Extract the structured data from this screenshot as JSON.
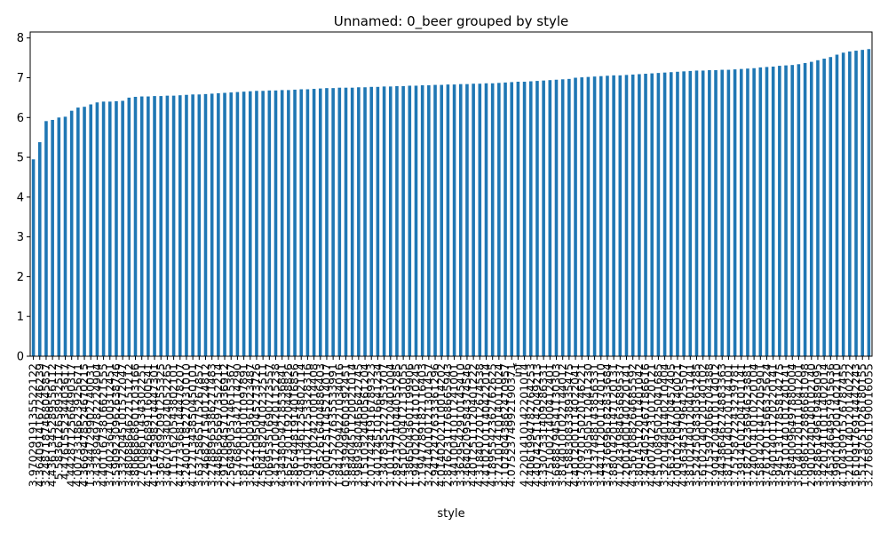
{
  "chart_data": {
    "type": "bar",
    "title": "Unnamed: 0_beer grouped by style",
    "xlabel": "style",
    "ylabel": "",
    "ylim": [
      0,
      8.15
    ],
    "yticks": [
      0,
      1,
      2,
      3,
      4,
      5,
      6,
      7,
      8
    ],
    "legend": "none",
    "grid": false,
    "bar_color": "#1f77b4",
    "categories": [
      "3.9702919135522122",
      "4.3640914167246239",
      "3.2487187468045857",
      "4.4361345289556112",
      "5.583612658932517",
      "4.476155234403617",
      "4.4428712566490317",
      "4.0073318623925671",
      "4.3669478524670215",
      "1.3344729902740031",
      "3.4328949782224904",
      "4.4011673816621555",
      "3.7402364100312451",
      "3.5909230962638746",
      "3.3322045101572047",
      "3.4808864622151212",
      "3.8066868601203166",
      "2.7008611434302251",
      "4.5538268911600541",
      "4.1162398214447301",
      "3.3677892091255325",
      "3.4670334024052265",
      "2.1151620543802101",
      "4.4773368144478207",
      "3.2400118227031010",
      "4.1271343850450101",
      "3.6375865175267857",
      "3.2468271540124812",
      "3.2788965386271483",
      "3.4486365697352214",
      "2.9120645710036912",
      "2.5649903574615367",
      "1.5768616342114290",
      "3.8712010101097891",
      "3.6122500361023487",
      "4.2631095045273726",
      "4.5041820410232511",
      "4.0695351690723557",
      "3.4512100420115238",
      "4.3438054218536841",
      "3.6573011920448826",
      "3.8654481914016856",
      "2.9113461254802114",
      "3.0910421253328316",
      "3.3417024210014408",
      "3.6952616404886403",
      "3.7001251145214017",
      "2.9575277635533991",
      "1.8412094221034016",
      "0.6339496600392451",
      "3.8840451120021014",
      "3.9893840465642745",
      "4.1510324400561204",
      "2.0174241916789323",
      "3.4012451016641234",
      "2.3478352227953707",
      "3.1011451120401004",
      "2.8923774044055285",
      "2.4510200412131055",
      "1.3865043601199906",
      "1.9470202141010245",
      "2.1947789182116403",
      "3.2414010121301457",
      "2.9472477633361296",
      "4.0140202110014202",
      "2.8762311768665943",
      "3.4410041011241001",
      "3.3629542910145410",
      "3.4640209584374546",
      "4.4012511120401222",
      "4.3184072012674538",
      "4.4102101140422014",
      "4.1895542362762625",
      "3.7210141014011024",
      "4.1078043862470957",
      "4.0752374992190371",
      "inf",
      "4.2201410142201014",
      "4.4061994782764253",
      "4.4074251142049213",
      "4.3307331409286331",
      "3.7510021400412401",
      "3.6888794541130303",
      "3.8140101022144012",
      "4.1588308338935475",
      "4.4012001114022041",
      "3.7097015020146221",
      "3.3013050512041230",
      "3.1237488143856331",
      "3.4471120011470110",
      "3.7376696182833684",
      "3.8801420147120131",
      "4.1243198463689537",
      "4.2001400140220141",
      "4.3567088264685592",
      "3.8014512011401042",
      "3.4254052467186616",
      "4.4007412310120121",
      "4.5110895025041685",
      "3.3201440140210404",
      "4.5632768770457405",
      "4.0010210400140021",
      "4.4363453796425507",
      "3.8102140120401141",
      "3.5247503830363285",
      "3.6102140120140102",
      "3.7153972066704388",
      "3.9041204110114012",
      "3.4438646274883363",
      "3.8710140120114101",
      "3.7575872243239781",
      "3.3914101204101141",
      "3.1827623694623881",
      "3.2400141010220104",
      "3.5814201412205901",
      "3.7612011566375624",
      "3.6401401120220141",
      "3.9451311785814275",
      "3.5410140101240141",
      "3.2840096497880004",
      "3.6140120111041201",
      "1.0986122886681098",
      "2.9010240140102140",
      "3.8286149619489095",
      "3.4201411011402014",
      "3.4532464957915636",
      "3.9901012001402110",
      "4.1043091576787455",
      "3.2101140120140222",
      "3.6109176914442243",
      "3.5123751026180155",
      "3.2768061190016055"
    ],
    "values": [
      4.95,
      5.38,
      5.91,
      5.94,
      6.0,
      6.02,
      6.17,
      6.25,
      6.27,
      6.33,
      6.38,
      6.4,
      6.4,
      6.41,
      6.42,
      6.5,
      6.52,
      6.53,
      6.53,
      6.54,
      6.54,
      6.55,
      6.55,
      6.56,
      6.57,
      6.58,
      6.58,
      6.59,
      6.6,
      6.61,
      6.62,
      6.63,
      6.64,
      6.65,
      6.66,
      6.67,
      6.67,
      6.68,
      6.68,
      6.69,
      6.69,
      6.7,
      6.71,
      6.71,
      6.72,
      6.73,
      6.74,
      6.74,
      6.75,
      6.75,
      6.75,
      6.76,
      6.76,
      6.77,
      6.77,
      6.78,
      6.78,
      6.79,
      6.79,
      6.8,
      6.8,
      6.81,
      6.81,
      6.82,
      6.82,
      6.83,
      6.83,
      6.84,
      6.84,
      6.85,
      6.85,
      6.86,
      6.86,
      6.87,
      6.88,
      6.89,
      6.9,
      6.9,
      6.91,
      6.92,
      6.93,
      6.94,
      6.95,
      6.96,
      6.97,
      7.0,
      7.01,
      7.02,
      7.03,
      7.04,
      7.05,
      7.06,
      7.06,
      7.07,
      7.08,
      7.09,
      7.1,
      7.11,
      7.12,
      7.13,
      7.14,
      7.15,
      7.16,
      7.17,
      7.18,
      7.18,
      7.19,
      7.19,
      7.2,
      7.2,
      7.21,
      7.22,
      7.23,
      7.24,
      7.26,
      7.27,
      7.28,
      7.3,
      7.31,
      7.32,
      7.34,
      7.37,
      7.4,
      7.44,
      7.48,
      7.52,
      7.58,
      7.63,
      7.66,
      7.68,
      7.7,
      7.72
    ]
  }
}
